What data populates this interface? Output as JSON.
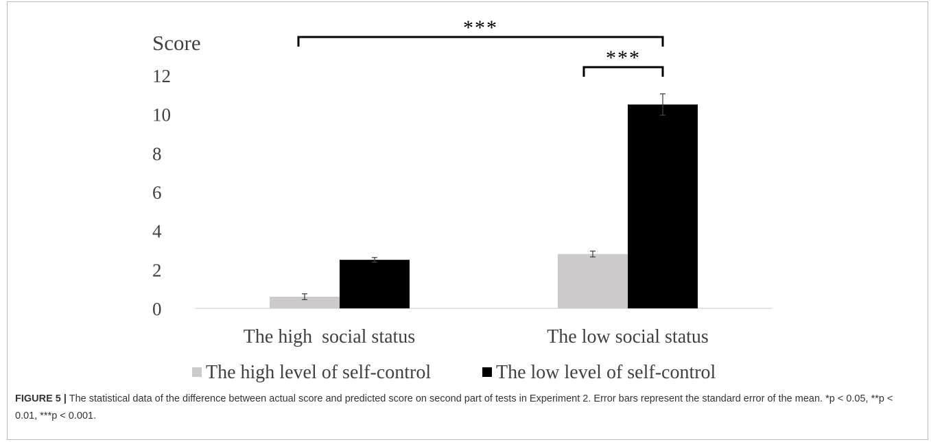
{
  "chart_data": {
    "type": "bar",
    "ylabel": "Score",
    "categories": [
      "The high  social status",
      "The low social status"
    ],
    "series": [
      {
        "name": "The high level of self-control",
        "color": "#cccacb",
        "values": [
          0.6,
          2.8
        ],
        "errors": [
          0.15,
          0.15
        ]
      },
      {
        "name": "The low level of self-control",
        "color": "#000000",
        "values": [
          2.5,
          10.5
        ],
        "errors": [
          0.12,
          0.55
        ]
      }
    ],
    "ylim": [
      0,
      12
    ],
    "yticks": [
      "0",
      "2",
      "4",
      "6",
      "8",
      "10",
      "12"
    ],
    "grid": false,
    "legend_position": "bottom",
    "annotations": [
      {
        "text": "***",
        "label": "across social status"
      },
      {
        "text": "***",
        "label": "within low social status"
      }
    ]
  },
  "caption": {
    "label": "FIGURE 5 |",
    "text": "The statistical data of the difference between actual score and predicted score on second part of tests in Experiment 2. Error bars represent the standard error of the mean. *p < 0.05, **p < 0.01, ***p < 0.001."
  }
}
